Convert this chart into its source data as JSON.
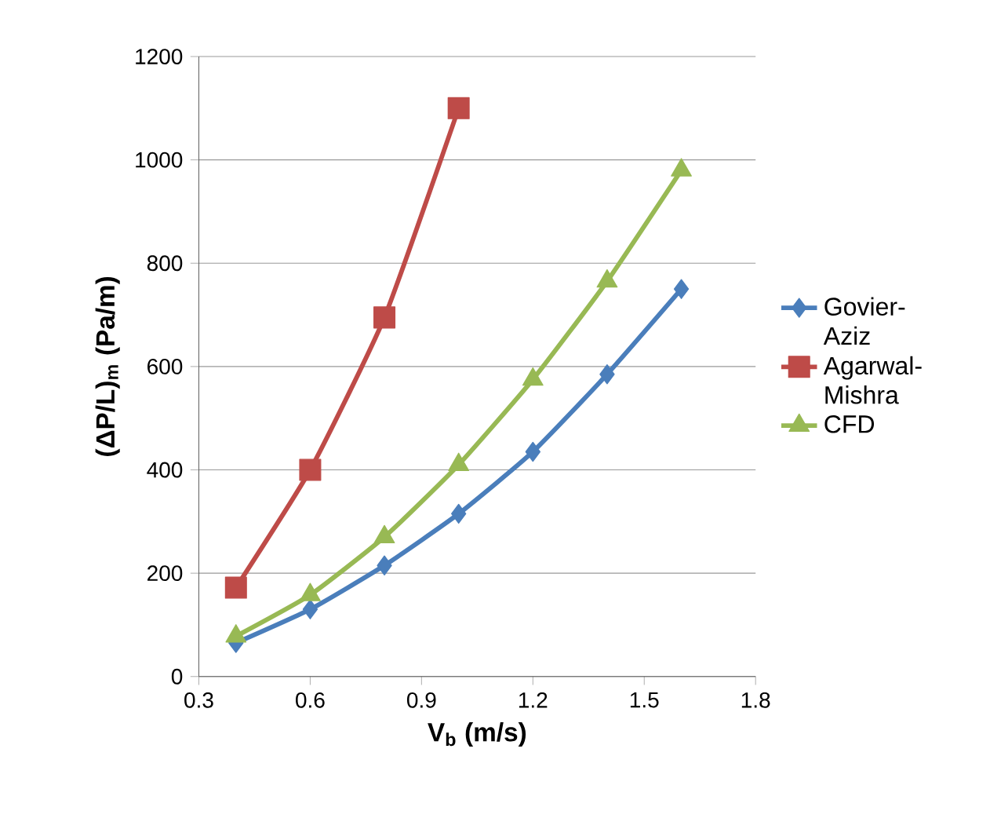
{
  "chart_data": {
    "type": "line",
    "xlabel": "**V$_{b}$ (m/s)**",
    "ylabel": "**(ΔP/L)$_{m}$ (Pa/m)**",
    "xlim": [
      0.3,
      1.8
    ],
    "xticks": [
      0.3,
      0.6,
      0.9,
      1.2,
      1.5,
      1.8
    ],
    "ylim": [
      0,
      1200
    ],
    "yticks": [
      0,
      200,
      400,
      600,
      800,
      1000,
      1200
    ],
    "grid": "y",
    "legend": "right",
    "series": [
      {
        "name": "Govier-Aziz",
        "color": "#4a7ebb",
        "marker": "diamond",
        "x": [
          0.4,
          0.6,
          0.8,
          1.0,
          1.2,
          1.4,
          1.6
        ],
        "values": [
          65,
          130,
          215,
          315,
          435,
          585,
          750
        ]
      },
      {
        "name": "Agarwal-Mishra",
        "color": "#be4b48",
        "marker": "square",
        "x": [
          0.4,
          0.6,
          0.8,
          1.0
        ],
        "values": [
          172,
          400,
          695,
          1100
        ]
      },
      {
        "name": "CFD",
        "color": "#98b954",
        "marker": "triangle",
        "x": [
          0.4,
          0.6,
          0.8,
          1.0,
          1.2,
          1.4,
          1.6
        ],
        "values": [
          78,
          158,
          270,
          410,
          575,
          765,
          980
        ]
      }
    ]
  }
}
